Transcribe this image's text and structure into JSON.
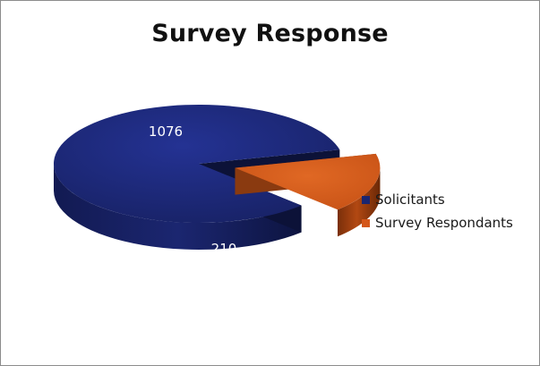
{
  "chart_data": {
    "type": "pie",
    "title": "Survey Response",
    "categories": [
      "Solicitants",
      "Survey Respondants"
    ],
    "values": [
      1076,
      210
    ],
    "exploded": "Survey Respondants",
    "style": "3d",
    "legend_position": "right",
    "colors": {
      "Solicitants": "#1b2670",
      "Survey Respondants": "#d4571a"
    }
  }
}
